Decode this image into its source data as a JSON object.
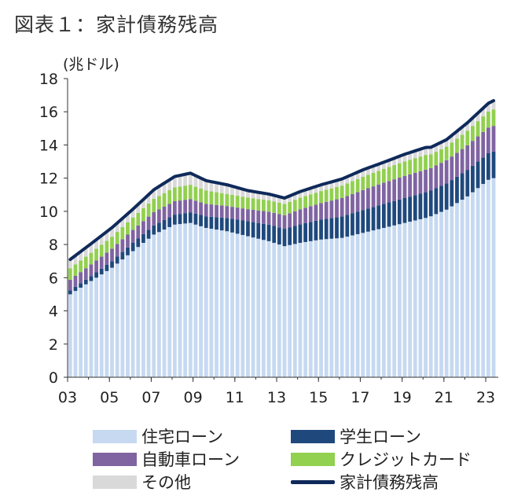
{
  "title": "図表１：家計債務残高",
  "chart_data": {
    "type": "bar",
    "stacked": true,
    "ylabel": "(兆ドル)",
    "ylim": [
      0,
      18
    ],
    "yticks": [
      0,
      2,
      4,
      6,
      8,
      10,
      12,
      14,
      16,
      18
    ],
    "xlim": [
      2003.0,
      2023.6
    ],
    "xticks": [
      {
        "value": 2003,
        "label": "03"
      },
      {
        "value": 2005,
        "label": "05"
      },
      {
        "value": 2007,
        "label": "07"
      },
      {
        "value": 2009,
        "label": "09"
      },
      {
        "value": 2011,
        "label": "11"
      },
      {
        "value": 2013,
        "label": "13"
      },
      {
        "value": 2015,
        "label": "15"
      },
      {
        "value": 2017,
        "label": "17"
      },
      {
        "value": 2019,
        "label": "19"
      },
      {
        "value": 2021,
        "label": "21"
      },
      {
        "value": 2023,
        "label": "23"
      }
    ],
    "start_year": 2003,
    "quarters": 82,
    "anchors_year": [
      2003.0,
      2004.0,
      2005.0,
      2006.0,
      2007.0,
      2008.0,
      2008.75,
      2009.5,
      2010.5,
      2011.5,
      2012.5,
      2013.25,
      2014.0,
      2015.0,
      2016.0,
      2017.0,
      2018.0,
      2019.0,
      2020.0,
      2020.25,
      2021.0,
      2022.0,
      2023.0,
      2023.25
    ],
    "series": [
      {
        "name": "住宅ローン",
        "color": "#c6d9f1",
        "anchor_values": [
          5.0,
          5.8,
          6.6,
          7.6,
          8.6,
          9.2,
          9.3,
          9.0,
          8.8,
          8.5,
          8.2,
          7.9,
          8.1,
          8.3,
          8.4,
          8.7,
          9.0,
          9.3,
          9.6,
          9.7,
          10.1,
          10.9,
          11.9,
          12.0
        ]
      },
      {
        "name": "学生ローン",
        "color": "#1f497d",
        "anchor_values": [
          0.24,
          0.3,
          0.4,
          0.5,
          0.55,
          0.6,
          0.64,
          0.7,
          0.8,
          0.9,
          1.0,
          1.05,
          1.12,
          1.2,
          1.3,
          1.38,
          1.45,
          1.5,
          1.55,
          1.55,
          1.58,
          1.6,
          1.6,
          1.6
        ]
      },
      {
        "name": "自動車ローン",
        "color": "#8064a2",
        "anchor_values": [
          0.64,
          0.7,
          0.75,
          0.78,
          0.8,
          0.81,
          0.8,
          0.75,
          0.72,
          0.73,
          0.78,
          0.82,
          0.9,
          1.0,
          1.1,
          1.2,
          1.28,
          1.33,
          1.36,
          1.36,
          1.4,
          1.48,
          1.55,
          1.55
        ]
      },
      {
        "name": "クレジットカード",
        "color": "#92d050",
        "anchor_values": [
          0.69,
          0.7,
          0.72,
          0.75,
          0.8,
          0.84,
          0.86,
          0.8,
          0.73,
          0.7,
          0.68,
          0.68,
          0.7,
          0.72,
          0.75,
          0.8,
          0.83,
          0.88,
          0.89,
          0.82,
          0.82,
          0.88,
          0.96,
          0.99
        ]
      },
      {
        "name": "その他",
        "color": "#d9d9d9",
        "anchor_values": [
          0.53,
          0.55,
          0.55,
          0.5,
          0.55,
          0.65,
          0.7,
          0.6,
          0.55,
          0.42,
          0.38,
          0.35,
          0.37,
          0.38,
          0.4,
          0.42,
          0.4,
          0.43,
          0.45,
          0.43,
          0.42,
          0.48,
          0.5,
          0.53
        ]
      }
    ],
    "line": {
      "name": "家計債務残高",
      "color": "#0f2a5a"
    },
    "legend_position": "bottom"
  }
}
